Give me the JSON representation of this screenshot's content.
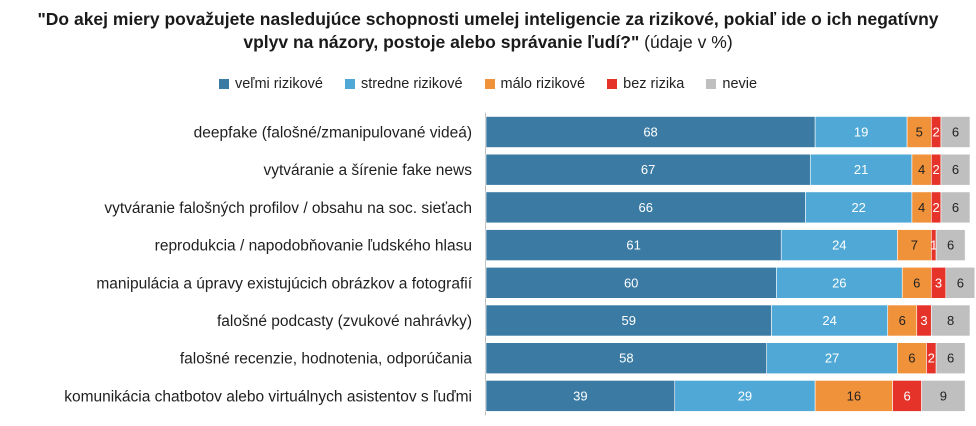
{
  "chart_data": {
    "type": "bar",
    "orientation": "horizontal",
    "stacked": true,
    "title_lines": [
      "\"Do akej miery považujete nasledujúce schopnosti umelej inteligencie za rizikové, pokiaľ ide o ich negatívny",
      "vplyv na názory, postoje alebo správanie ľudí?\""
    ],
    "title_suffix": " (údaje v %)",
    "legend_position": "top",
    "xlim": [
      0,
      100
    ],
    "categories": [
      "deepfake (falošné/zmanipulované videá)",
      "vytváranie a šírenie fake news",
      "vytváranie falošných profilov / obsahu na soc. sieťach",
      "reprodukcia / napodobňovanie ľudského hlasu",
      "manipulácia a úpravy existujúcich obrázkov a fotografií",
      "falošné podcasty (zvukové nahrávky)",
      "falošné recenzie, hodnotenia, odporúčania",
      "komunikácia chatbotov alebo virtuálnych asistentov s ľuďmi"
    ],
    "series": [
      {
        "name": "veľmi rizikové",
        "color": "#3a7aa3",
        "label_color": "#ffffff",
        "values": [
          68,
          67,
          66,
          61,
          60,
          59,
          58,
          39
        ]
      },
      {
        "name": "stredne rizikové",
        "color": "#4fa8d6",
        "label_color": "#ffffff",
        "values": [
          19,
          21,
          22,
          24,
          26,
          24,
          27,
          29
        ]
      },
      {
        "name": "málo rizikové",
        "color": "#f0923a",
        "label_color": "#222222",
        "values": [
          5,
          4,
          4,
          7,
          6,
          6,
          6,
          16
        ]
      },
      {
        "name": "bez rizika",
        "color": "#e5332a",
        "label_color": "#ffffff",
        "values": [
          2,
          2,
          2,
          1,
          3,
          3,
          2,
          6
        ]
      },
      {
        "name": "nevie",
        "color": "#bfbfbf",
        "label_color": "#222222",
        "values": [
          6,
          6,
          6,
          6,
          6,
          8,
          6,
          9
        ]
      }
    ]
  }
}
